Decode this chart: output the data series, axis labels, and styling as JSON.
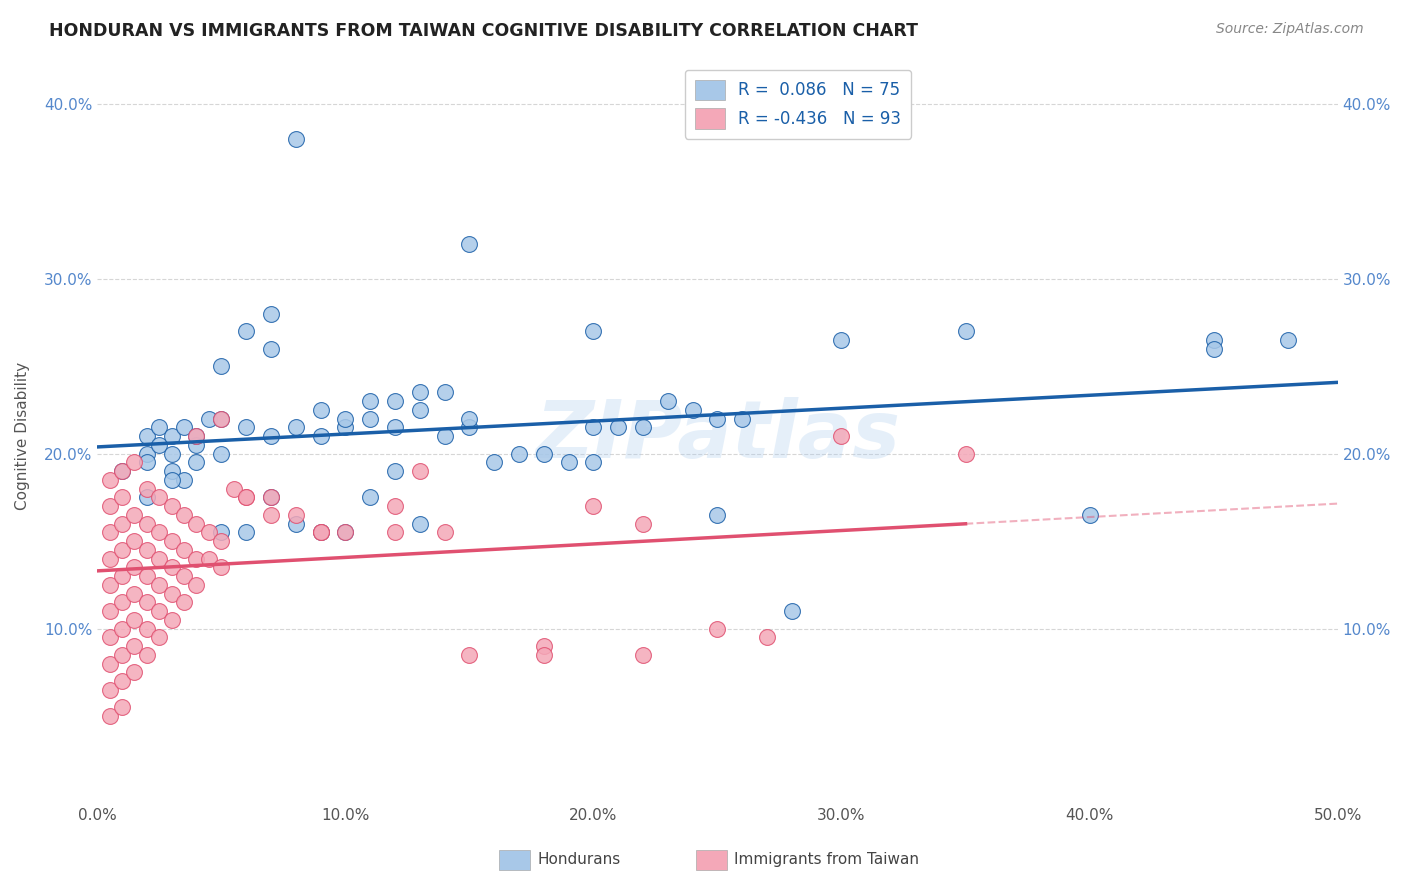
{
  "title": "HONDURAN VS IMMIGRANTS FROM TAIWAN COGNITIVE DISABILITY CORRELATION CHART",
  "source": "Source: ZipAtlas.com",
  "label_honduran": "Hondurans",
  "label_taiwan": "Immigrants from Taiwan",
  "ylabel": "Cognitive Disability",
  "R_honduran": 0.086,
  "N_honduran": 75,
  "R_taiwan": -0.436,
  "N_taiwan": 93,
  "xlim": [
    0.0,
    0.5
  ],
  "ylim": [
    0.0,
    0.42
  ],
  "xticks": [
    0.0,
    0.1,
    0.2,
    0.3,
    0.4,
    0.5
  ],
  "yticks": [
    0.1,
    0.2,
    0.3,
    0.4
  ],
  "color_honduran": "#a8c8e8",
  "color_taiwan": "#f4a8b8",
  "line_honduran": "#1a5fa8",
  "line_taiwan": "#e05070",
  "watermark": "ZIPatlas",
  "background": "#ffffff",
  "grid_color": "#cccccc",
  "honduran_x": [
    0.01,
    0.02,
    0.02,
    0.02,
    0.025,
    0.025,
    0.03,
    0.03,
    0.03,
    0.035,
    0.035,
    0.04,
    0.04,
    0.045,
    0.05,
    0.05,
    0.05,
    0.06,
    0.06,
    0.07,
    0.07,
    0.07,
    0.08,
    0.08,
    0.09,
    0.09,
    0.1,
    0.1,
    0.11,
    0.11,
    0.12,
    0.12,
    0.13,
    0.13,
    0.14,
    0.14,
    0.15,
    0.15,
    0.16,
    0.17,
    0.18,
    0.19,
    0.2,
    0.2,
    0.21,
    0.22,
    0.23,
    0.24,
    0.25,
    0.26,
    0.28,
    0.3,
    0.35,
    0.4,
    0.45,
    0.48,
    0.02,
    0.03,
    0.04,
    0.05,
    0.06,
    0.07,
    0.08,
    0.09,
    0.1,
    0.11,
    0.12,
    0.13,
    0.15,
    0.2,
    0.25,
    0.45
  ],
  "honduran_y": [
    0.19,
    0.2,
    0.195,
    0.21,
    0.205,
    0.215,
    0.19,
    0.2,
    0.21,
    0.185,
    0.215,
    0.205,
    0.21,
    0.22,
    0.2,
    0.22,
    0.25,
    0.27,
    0.215,
    0.21,
    0.26,
    0.28,
    0.38,
    0.215,
    0.21,
    0.225,
    0.215,
    0.22,
    0.22,
    0.23,
    0.23,
    0.215,
    0.225,
    0.235,
    0.235,
    0.21,
    0.215,
    0.22,
    0.195,
    0.2,
    0.2,
    0.195,
    0.195,
    0.215,
    0.215,
    0.215,
    0.23,
    0.225,
    0.22,
    0.22,
    0.11,
    0.265,
    0.27,
    0.165,
    0.265,
    0.265,
    0.175,
    0.185,
    0.195,
    0.155,
    0.155,
    0.175,
    0.16,
    0.155,
    0.155,
    0.175,
    0.19,
    0.16,
    0.32,
    0.27,
    0.165,
    0.26
  ],
  "taiwan_x": [
    0.005,
    0.005,
    0.005,
    0.005,
    0.005,
    0.005,
    0.005,
    0.005,
    0.005,
    0.005,
    0.01,
    0.01,
    0.01,
    0.01,
    0.01,
    0.01,
    0.01,
    0.01,
    0.01,
    0.01,
    0.015,
    0.015,
    0.015,
    0.015,
    0.015,
    0.015,
    0.015,
    0.015,
    0.02,
    0.02,
    0.02,
    0.02,
    0.02,
    0.02,
    0.02,
    0.025,
    0.025,
    0.025,
    0.025,
    0.025,
    0.025,
    0.03,
    0.03,
    0.03,
    0.03,
    0.03,
    0.035,
    0.035,
    0.035,
    0.035,
    0.04,
    0.04,
    0.04,
    0.045,
    0.045,
    0.05,
    0.05,
    0.06,
    0.07,
    0.08,
    0.09,
    0.1,
    0.12,
    0.13,
    0.14,
    0.15,
    0.18,
    0.2,
    0.22,
    0.25,
    0.27,
    0.3,
    0.35,
    0.04,
    0.05,
    0.055,
    0.06,
    0.07,
    0.09,
    0.12,
    0.18,
    0.22
  ],
  "taiwan_y": [
    0.185,
    0.17,
    0.155,
    0.14,
    0.125,
    0.11,
    0.095,
    0.08,
    0.065,
    0.05,
    0.19,
    0.175,
    0.16,
    0.145,
    0.13,
    0.115,
    0.1,
    0.085,
    0.07,
    0.055,
    0.195,
    0.165,
    0.15,
    0.135,
    0.12,
    0.105,
    0.09,
    0.075,
    0.18,
    0.16,
    0.145,
    0.13,
    0.115,
    0.1,
    0.085,
    0.175,
    0.155,
    0.14,
    0.125,
    0.11,
    0.095,
    0.17,
    0.15,
    0.135,
    0.12,
    0.105,
    0.165,
    0.145,
    0.13,
    0.115,
    0.16,
    0.14,
    0.125,
    0.155,
    0.14,
    0.15,
    0.135,
    0.175,
    0.165,
    0.165,
    0.155,
    0.155,
    0.17,
    0.19,
    0.155,
    0.085,
    0.09,
    0.17,
    0.16,
    0.1,
    0.095,
    0.21,
    0.2,
    0.21,
    0.22,
    0.18,
    0.175,
    0.175,
    0.155,
    0.155,
    0.085,
    0.085
  ]
}
